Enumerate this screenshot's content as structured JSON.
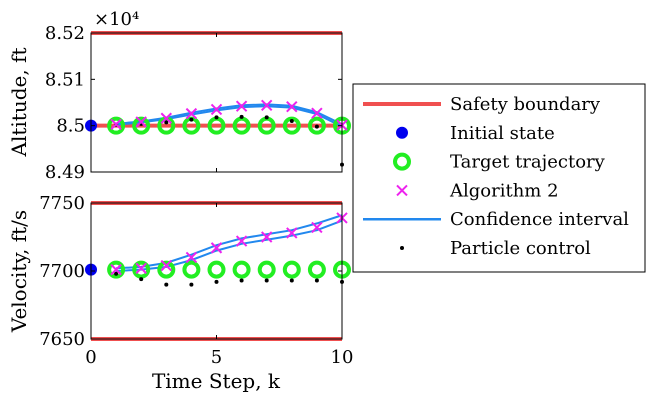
{
  "chart_data": [
    {
      "type": "scatter",
      "panel": "altitude",
      "ylabel": "Altitude, ft",
      "xlabel": "",
      "exponent_label": "×10⁴",
      "xlim": [
        0,
        10
      ],
      "ylim": [
        8.49,
        8.52
      ],
      "xticks": [
        0,
        5,
        10
      ],
      "xtick_labels": [],
      "yticks": [
        8.49,
        8.5,
        8.51,
        8.52
      ],
      "ytick_labels": [
        "8.49",
        "8.5",
        "8.51",
        "8.52"
      ],
      "grid": false,
      "safety_boundary": [
        8.5,
        8.52
      ],
      "series": [
        {
          "name": "Safety boundary",
          "kind": "hline",
          "color": "#f05050",
          "values": [
            8.5,
            8.52
          ]
        },
        {
          "name": "Initial state",
          "kind": "dot",
          "color": "#0000ee",
          "x": [
            0
          ],
          "y": [
            8.5
          ]
        },
        {
          "name": "Target trajectory",
          "kind": "ring",
          "color": "#22ee22",
          "x": [
            1,
            2,
            3,
            4,
            5,
            6,
            7,
            8,
            9,
            10
          ],
          "y": [
            8.5,
            8.5,
            8.5,
            8.5,
            8.5,
            8.5,
            8.5,
            8.5,
            8.5,
            8.5
          ]
        },
        {
          "name": "Algorithm 2",
          "kind": "cross",
          "color": "#ee22ee",
          "x": [
            1,
            2,
            3,
            4,
            5,
            6,
            7,
            8,
            9,
            10
          ],
          "y": [
            8.5003,
            8.5008,
            8.5016,
            8.5026,
            8.5035,
            8.5042,
            8.5044,
            8.5041,
            8.5027,
            8.5001
          ]
        },
        {
          "name": "Confidence interval",
          "kind": "band",
          "color": "#2288ee",
          "x": [
            1,
            2,
            3,
            4,
            5,
            6,
            7,
            8,
            9,
            10
          ],
          "lower": [
            8.5002,
            8.5007,
            8.5014,
            8.5024,
            8.5033,
            8.504,
            8.5042,
            8.5039,
            8.5025,
            8.4998
          ],
          "upper": [
            8.5004,
            8.5009,
            8.5017,
            8.5028,
            8.5037,
            8.5044,
            8.5046,
            8.5043,
            8.5029,
            8.5003
          ]
        },
        {
          "name": "Particle control",
          "kind": "small-dot",
          "color": "#000000",
          "x": [
            1,
            2,
            3,
            4,
            5,
            6,
            7,
            8,
            9,
            10
          ],
          "y": [
            8.5002,
            8.5004,
            8.5007,
            8.5013,
            8.5018,
            8.5019,
            8.5018,
            8.501,
            8.4998,
            8.4916
          ]
        }
      ]
    },
    {
      "type": "scatter",
      "panel": "velocity",
      "ylabel": "Velocity, ft/s",
      "xlabel": "Time Step, k",
      "xlim": [
        0,
        10
      ],
      "ylim": [
        7650,
        7750
      ],
      "xticks": [
        0,
        5,
        10
      ],
      "xtick_labels": [
        "0",
        "5",
        "10"
      ],
      "yticks": [
        7650,
        7700,
        7750
      ],
      "ytick_labels": [
        "7650",
        "7700",
        "7750"
      ],
      "grid": false,
      "safety_boundary": [
        7650,
        7750
      ],
      "series": [
        {
          "name": "Safety boundary",
          "kind": "hline",
          "color": "#f05050",
          "values": [
            7650,
            7750
          ]
        },
        {
          "name": "Initial state",
          "kind": "dot",
          "color": "#0000ee",
          "x": [
            0
          ],
          "y": [
            7701
          ]
        },
        {
          "name": "Target trajectory",
          "kind": "ring",
          "color": "#22ee22",
          "x": [
            1,
            2,
            3,
            4,
            5,
            6,
            7,
            8,
            9,
            10
          ],
          "y": [
            7701,
            7701,
            7701,
            7701,
            7701,
            7701,
            7701,
            7701,
            7701,
            7701
          ]
        },
        {
          "name": "Algorithm 2",
          "kind": "cross",
          "color": "#ee22ee",
          "x": [
            1,
            2,
            3,
            4,
            5,
            6,
            7,
            8,
            9,
            10
          ],
          "y": [
            7701,
            7702,
            7704,
            7710,
            7717,
            7722,
            7725,
            7728,
            7732,
            7739
          ]
        },
        {
          "name": "Confidence interval",
          "kind": "band",
          "color": "#2288ee",
          "x": [
            1,
            2,
            3,
            4,
            5,
            6,
            7,
            8,
            9,
            10
          ],
          "lower": [
            7700,
            7701,
            7703,
            7708,
            7715,
            7720,
            7723,
            7726,
            7730,
            7737
          ],
          "upper": [
            7702,
            7703,
            7706,
            7712,
            7719,
            7724,
            7727,
            7730,
            7735,
            7741
          ]
        },
        {
          "name": "Particle control",
          "kind": "small-dot",
          "color": "#000000",
          "x": [
            1,
            2,
            3,
            4,
            5,
            6,
            7,
            8,
            9,
            10
          ],
          "y": [
            7698,
            7694,
            7690,
            7690,
            7692,
            7693,
            7693,
            7693,
            7693,
            7692
          ]
        }
      ]
    }
  ],
  "legend": {
    "placement": "right",
    "items": [
      {
        "label": "Safety boundary",
        "kind": "hline",
        "color": "#f05050"
      },
      {
        "label": "Initial state",
        "kind": "dot",
        "color": "#0000ee"
      },
      {
        "label": "Target trajectory",
        "kind": "ring",
        "color": "#22ee22"
      },
      {
        "label": "Algorithm 2",
        "kind": "cross",
        "color": "#ee22ee"
      },
      {
        "label": "Confidence interval",
        "kind": "band",
        "color": "#2288ee"
      },
      {
        "label": "Particle control",
        "kind": "small-dot",
        "color": "#000000"
      }
    ]
  }
}
